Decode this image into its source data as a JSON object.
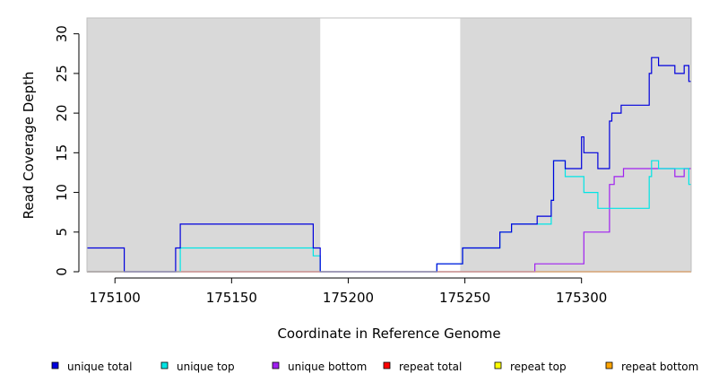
{
  "chart_data": {
    "type": "line",
    "xlabel": "Coordinate in Reference Genome",
    "ylabel": "Read Coverage Depth",
    "xlim": [
      175088,
      175347
    ],
    "ylim": [
      0,
      32
    ],
    "x_ticks": [
      175100,
      175150,
      175200,
      175250,
      175300
    ],
    "x_tick_labels": [
      "175100",
      "175150",
      "175200",
      "175250",
      "175300"
    ],
    "y_ticks": [
      0,
      5,
      10,
      15,
      20,
      25,
      30
    ],
    "y_tick_labels": [
      "0",
      "5",
      "10",
      "15",
      "20",
      "25",
      "30"
    ],
    "shaded_regions": [
      [
        175088,
        175188
      ],
      [
        175248,
        175347
      ]
    ],
    "shade_color": "#d9d9d9",
    "grid": false,
    "legend_position": "bottom",
    "series": [
      {
        "name": "unique total",
        "color": "#0000dd",
        "x": [
          175088,
          175104,
          175104,
          175126,
          175126,
          175128,
          175128,
          175185,
          175185,
          175188,
          175188,
          175188,
          175188,
          175238,
          175238,
          175249,
          175249,
          175265,
          175265,
          175270,
          175270,
          175281,
          175281,
          175287,
          175287,
          175288,
          175288,
          175293,
          175293,
          175300,
          175300,
          175301,
          175301,
          175302,
          175302,
          175307,
          175307,
          175312,
          175312,
          175313,
          175313,
          175317,
          175317,
          175329,
          175329,
          175330,
          175330,
          175333,
          175333,
          175340,
          175340,
          175344,
          175344,
          175346,
          175346,
          175347
        ],
        "y": [
          3,
          3,
          0,
          0,
          3,
          3,
          6,
          6,
          3,
          3,
          2,
          2,
          0,
          0,
          1,
          1,
          3,
          3,
          5,
          5,
          6,
          6,
          7,
          7,
          9,
          9,
          14,
          14,
          13,
          13,
          17,
          17,
          15,
          15,
          15,
          15,
          13,
          13,
          19,
          19,
          20,
          20,
          21,
          21,
          25,
          25,
          27,
          27,
          26,
          26,
          25,
          25,
          26,
          26,
          24,
          24
        ]
      },
      {
        "name": "unique top",
        "color": "#00e5e5",
        "x": [
          175088,
          175128,
          175128,
          175185,
          175185,
          175188,
          175188,
          175238,
          175238,
          175249,
          175249,
          175265,
          175265,
          175270,
          175270,
          175281,
          175281,
          175287,
          175287,
          175288,
          175288,
          175293,
          175293,
          175301,
          175301,
          175307,
          175307,
          175321,
          175321,
          175329,
          175329,
          175330,
          175330,
          175333,
          175333,
          175340,
          175340,
          175346,
          175346,
          175347
        ],
        "y": [
          0,
          0,
          3,
          3,
          2,
          2,
          0,
          0,
          1,
          1,
          3,
          3,
          5,
          5,
          6,
          6,
          6,
          6,
          9,
          9,
          14,
          14,
          12,
          12,
          10,
          10,
          8,
          8,
          8,
          8,
          12,
          12,
          14,
          14,
          13,
          13,
          13,
          13,
          11,
          11
        ]
      },
      {
        "name": "unique bottom",
        "color": "#a020f0",
        "x": [
          175088,
          175280,
          175280,
          175301,
          175301,
          175312,
          175312,
          175314,
          175314,
          175318,
          175318,
          175340,
          175340,
          175344,
          175344,
          175347
        ],
        "y": [
          0,
          0,
          1,
          1,
          5,
          5,
          11,
          11,
          12,
          12,
          13,
          13,
          12,
          12,
          13,
          13
        ]
      },
      {
        "name": "repeat total",
        "color": "#ff0000",
        "x": [
          175088,
          175347
        ],
        "y": [
          0,
          0
        ]
      },
      {
        "name": "repeat top",
        "color": "#ffff00",
        "x": [
          175088,
          175347
        ],
        "y": [
          0,
          0
        ]
      },
      {
        "name": "repeat bottom",
        "color": "#ffa500",
        "x": [
          175088,
          175347
        ],
        "y": [
          0,
          0
        ]
      }
    ]
  }
}
